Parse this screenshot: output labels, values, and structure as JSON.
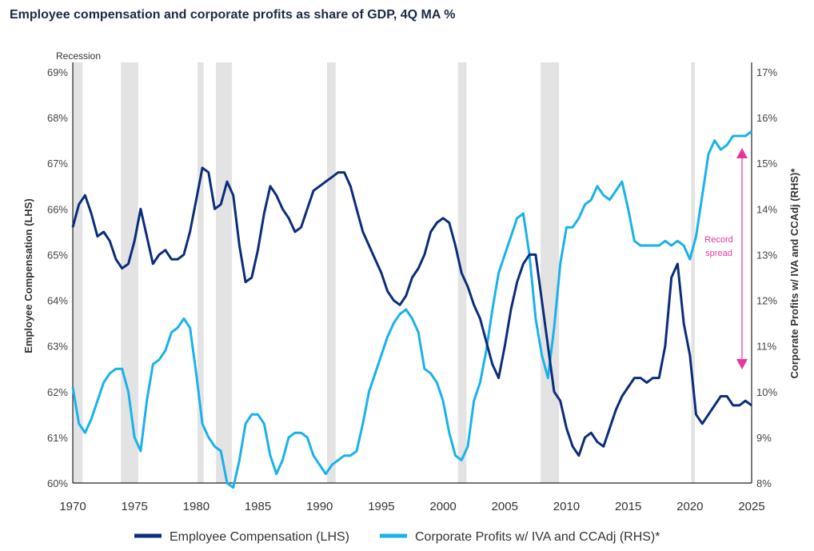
{
  "chart_data": {
    "type": "line",
    "title": "Employee compensation and corporate profits as share of GDP, 4Q MA %",
    "xlabel": "",
    "ylabel_left": "Employee Compensation (LHS)",
    "ylabel_right": "Corporate Profits w/ IVA and CCAdj (RHS)*",
    "xlim": [
      1970,
      2025
    ],
    "ylim_left": [
      60,
      69
    ],
    "ylim_right": [
      8,
      17
    ],
    "x_ticks": [
      1970,
      1975,
      1980,
      1985,
      1990,
      1995,
      2000,
      2005,
      2010,
      2015,
      2020,
      2025
    ],
    "y_left_ticks": [
      "60%",
      "61%",
      "62%",
      "63%",
      "64%",
      "65%",
      "66%",
      "67%",
      "68%",
      "69%"
    ],
    "y_right_ticks": [
      "8%",
      "9%",
      "10%",
      "11%",
      "12%",
      "13%",
      "14%",
      "15%",
      "16%",
      "17%"
    ],
    "recession_label": "Recession",
    "recessions": [
      [
        1970.0,
        1970.8
      ],
      [
        1973.9,
        1975.3
      ],
      [
        1980.1,
        1980.6
      ],
      [
        1981.6,
        1982.9
      ],
      [
        1990.6,
        1991.3
      ],
      [
        2001.2,
        2001.9
      ],
      [
        2007.9,
        2009.4
      ],
      [
        2020.1,
        2020.4
      ]
    ],
    "series": [
      {
        "name": "Employee Compensation (LHS)",
        "axis": "left",
        "color": "#0b2d7a",
        "x": [
          1970,
          1970.5,
          1971,
          1971.5,
          1972,
          1972.5,
          1973,
          1973.5,
          1974,
          1974.5,
          1975,
          1975.5,
          1976,
          1976.5,
          1977,
          1977.5,
          1978,
          1978.5,
          1979,
          1979.5,
          1980,
          1980.5,
          1981,
          1981.5,
          1982,
          1982.5,
          1983,
          1983.5,
          1984,
          1984.5,
          1985,
          1985.5,
          1986,
          1986.5,
          1987,
          1987.5,
          1988,
          1988.5,
          1989,
          1989.5,
          1990,
          1990.5,
          1991,
          1991.5,
          1992,
          1992.5,
          1993,
          1993.5,
          1994,
          1994.5,
          1995,
          1995.5,
          1996,
          1996.5,
          1997,
          1997.5,
          1998,
          1998.5,
          1999,
          1999.5,
          2000,
          2000.5,
          2001,
          2001.5,
          2002,
          2002.5,
          2003,
          2003.5,
          2004,
          2004.5,
          2005,
          2005.5,
          2006,
          2006.5,
          2007,
          2007.5,
          2008,
          2008.5,
          2009,
          2009.5,
          2010,
          2010.5,
          2011,
          2011.5,
          2012,
          2012.5,
          2013,
          2013.5,
          2014,
          2014.5,
          2015,
          2015.5,
          2016,
          2016.5,
          2017,
          2017.5,
          2018,
          2018.5,
          2019,
          2019.5,
          2020,
          2020.5,
          2021,
          2021.5,
          2022,
          2022.5,
          2023,
          2023.5,
          2024,
          2024.5,
          2025
        ],
        "values": [
          65.6,
          66.1,
          66.3,
          65.9,
          65.4,
          65.5,
          65.3,
          64.9,
          64.7,
          64.8,
          65.3,
          66.0,
          65.4,
          64.8,
          65.0,
          65.1,
          64.9,
          64.9,
          65.0,
          65.5,
          66.2,
          66.9,
          66.8,
          66.0,
          66.1,
          66.6,
          66.3,
          65.2,
          64.4,
          64.5,
          65.1,
          65.9,
          66.5,
          66.3,
          66.0,
          65.8,
          65.5,
          65.6,
          66.0,
          66.4,
          66.5,
          66.6,
          66.7,
          66.8,
          66.8,
          66.5,
          66.0,
          65.5,
          65.2,
          64.9,
          64.6,
          64.2,
          64.0,
          63.9,
          64.1,
          64.5,
          64.7,
          65.0,
          65.5,
          65.7,
          65.8,
          65.7,
          65.2,
          64.6,
          64.3,
          63.9,
          63.6,
          63.1,
          62.6,
          62.3,
          63.0,
          63.8,
          64.4,
          64.8,
          65.0,
          65.0,
          64.0,
          63.0,
          62.0,
          61.8,
          61.2,
          60.8,
          60.6,
          61.0,
          61.1,
          60.9,
          60.8,
          61.2,
          61.6,
          61.9,
          62.1,
          62.3,
          62.3,
          62.2,
          62.3,
          62.3,
          63.0,
          64.5,
          64.8,
          63.5,
          62.8,
          61.5,
          61.3,
          61.5,
          61.7,
          61.9,
          61.9,
          61.7,
          61.7,
          61.8,
          61.7
        ],
        "values_note": "approximate, read off the figure"
      },
      {
        "name": "Corporate Profits w/ IVA and CCAdj (RHS)*",
        "axis": "right",
        "color": "#19b2ea",
        "x": [
          1970,
          1970.5,
          1971,
          1971.5,
          1972,
          1972.5,
          1973,
          1973.5,
          1974,
          1974.5,
          1975,
          1975.5,
          1976,
          1976.5,
          1977,
          1977.5,
          1978,
          1978.5,
          1979,
          1979.5,
          1980,
          1980.5,
          1981,
          1981.5,
          1982,
          1982.5,
          1983,
          1983.5,
          1984,
          1984.5,
          1985,
          1985.5,
          1986,
          1986.5,
          1987,
          1987.5,
          1988,
          1988.5,
          1989,
          1989.5,
          1990,
          1990.5,
          1991,
          1991.5,
          1992,
          1992.5,
          1993,
          1993.5,
          1994,
          1994.5,
          1995,
          1995.5,
          1996,
          1996.5,
          1997,
          1997.5,
          1998,
          1998.5,
          1999,
          1999.5,
          2000,
          2000.5,
          2001,
          2001.5,
          2002,
          2002.5,
          2003,
          2003.5,
          2004,
          2004.5,
          2005,
          2005.5,
          2006,
          2006.5,
          2007,
          2007.5,
          2008,
          2008.5,
          2009,
          2009.5,
          2010,
          2010.5,
          2011,
          2011.5,
          2012,
          2012.5,
          2013,
          2013.5,
          2014,
          2014.5,
          2015,
          2015.5,
          2016,
          2016.5,
          2017,
          2017.5,
          2018,
          2018.5,
          2019,
          2019.5,
          2020,
          2020.5,
          2021,
          2021.5,
          2022,
          2022.5,
          2023,
          2023.5,
          2024,
          2024.5,
          2025
        ],
        "values": [
          10.1,
          9.3,
          9.1,
          9.4,
          9.8,
          10.2,
          10.4,
          10.5,
          10.5,
          10.0,
          9.0,
          8.7,
          9.8,
          10.6,
          10.7,
          10.9,
          11.3,
          11.4,
          11.6,
          11.4,
          10.4,
          9.3,
          9.0,
          8.8,
          8.7,
          8.0,
          7.9,
          8.5,
          9.3,
          9.5,
          9.5,
          9.3,
          8.6,
          8.2,
          8.5,
          9.0,
          9.1,
          9.1,
          9.0,
          8.6,
          8.4,
          8.2,
          8.4,
          8.5,
          8.6,
          8.6,
          8.7,
          9.3,
          10.0,
          10.4,
          10.8,
          11.2,
          11.5,
          11.7,
          11.8,
          11.6,
          11.3,
          10.5,
          10.4,
          10.2,
          9.8,
          9.1,
          8.6,
          8.5,
          8.8,
          9.8,
          10.2,
          10.9,
          11.8,
          12.6,
          13.0,
          13.4,
          13.8,
          13.9,
          13.0,
          11.6,
          10.8,
          10.3,
          11.4,
          12.8,
          13.6,
          13.6,
          13.8,
          14.1,
          14.2,
          14.5,
          14.3,
          14.2,
          14.4,
          14.6,
          14.0,
          13.3,
          13.2,
          13.2,
          13.2,
          13.2,
          13.3,
          13.2,
          13.3,
          13.2,
          12.9,
          13.4,
          14.3,
          15.2,
          15.5,
          15.3,
          15.4,
          15.6,
          15.6,
          15.6,
          15.7
        ],
        "values_note": "approximate, read off the figure"
      }
    ],
    "annotation": {
      "text_line1": "Record",
      "text_line2": "spread",
      "color": "#e8359c"
    },
    "legend": {
      "placement": "bottom-center",
      "entries": [
        "Employee Compensation (LHS)",
        "Corporate Profits w/ IVA and CCAdj (RHS)*"
      ]
    },
    "grid": false
  },
  "colors": {
    "comp": "#0b2d7a",
    "profits": "#19b2ea",
    "recession": "#e3e3e3",
    "annotation": "#e8359c"
  }
}
